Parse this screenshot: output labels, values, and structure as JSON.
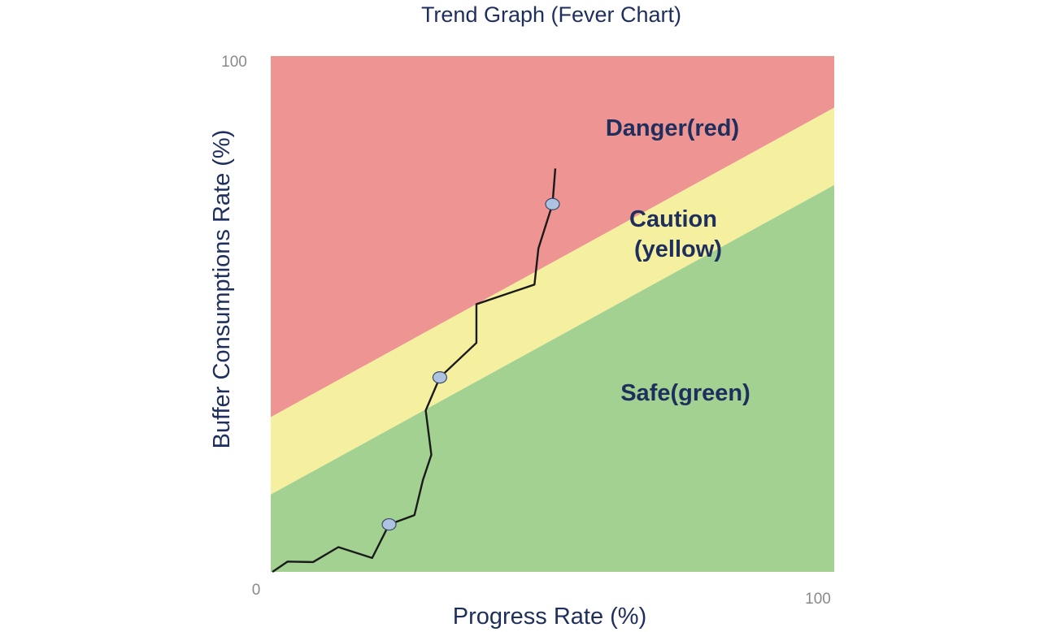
{
  "chart_data": {
    "type": "line",
    "title": "Trend Graph (Fever Chart)",
    "xlabel": "Progress Rate (%)",
    "ylabel": "Buffer Consumptions Rate (%)",
    "xlim": [
      0,
      100
    ],
    "ylim": [
      0,
      100
    ],
    "ticks": {
      "origin": "0",
      "x_max": "100",
      "y_max": "100"
    },
    "zones": [
      {
        "label": "Danger(red)",
        "color": "#ee9493",
        "lower_boundary": [
          [
            0,
            30
          ],
          [
            100,
            90
          ]
        ]
      },
      {
        "label_lines": [
          "Caution",
          "(yellow)"
        ],
        "color": "#f5f0a0",
        "lower_boundary": [
          [
            0,
            15
          ],
          [
            100,
            75
          ]
        ]
      },
      {
        "label": "Safe(green)",
        "color": "#a2d192"
      }
    ],
    "grid": false,
    "series": [
      {
        "x": [
          0.3,
          3,
          7.5,
          12,
          18,
          21,
          25.5,
          27,
          27,
          28.5,
          28.5,
          27.5,
          30,
          36.5,
          36.5,
          46.8,
          46.8,
          47.5,
          50,
          50,
          50.5
        ],
        "y": [
          0,
          2,
          1.9,
          4.8,
          2.7,
          9.2,
          11,
          17.8,
          17.8,
          22.7,
          22.7,
          31.3,
          37.7,
          44.4,
          51.9,
          55.7,
          55.7,
          62.7,
          71.3,
          71.3,
          78.2
        ],
        "color": "#1a1a1a",
        "markers": [
          {
            "x": 21,
            "y": 9.2
          },
          {
            "x": 30,
            "y": 37.7
          },
          {
            "x": 50,
            "y": 71.3
          }
        ],
        "marker_color": "#aec3e2"
      }
    ]
  }
}
